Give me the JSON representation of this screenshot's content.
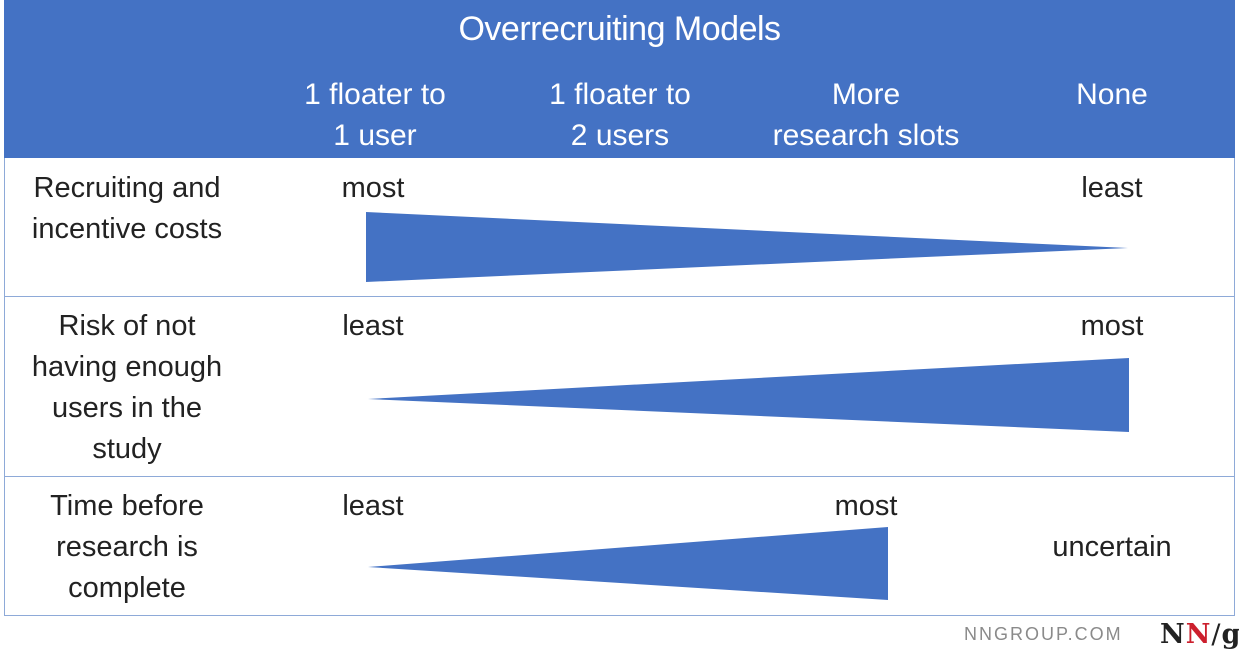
{
  "header": {
    "title": "Overrecruiting Models",
    "columns": [
      "1 floater to\n1 user",
      "1 floater to\n2 users",
      "More\nresearch slots",
      "None"
    ]
  },
  "rows": [
    {
      "label": "Recruiting and\nincentive costs",
      "start_text": "most",
      "end_text": "least"
    },
    {
      "label": "Risk of not\nhaving enough\nusers in the\nstudy",
      "start_text": "least",
      "end_text": "most"
    },
    {
      "label": "Time before\nresearch is\ncomplete",
      "start_text": "least",
      "end_text": "most",
      "extra_text": "uncertain"
    }
  ],
  "footer": {
    "site": "NNGROUP.COM",
    "logo_n1": "N",
    "logo_n2": "N",
    "logo_slash": "/",
    "logo_g": "g"
  },
  "colors": {
    "header_bg": "#4472c4",
    "wedge": "#4472c4",
    "logo_accent": "#cc1f2d"
  }
}
